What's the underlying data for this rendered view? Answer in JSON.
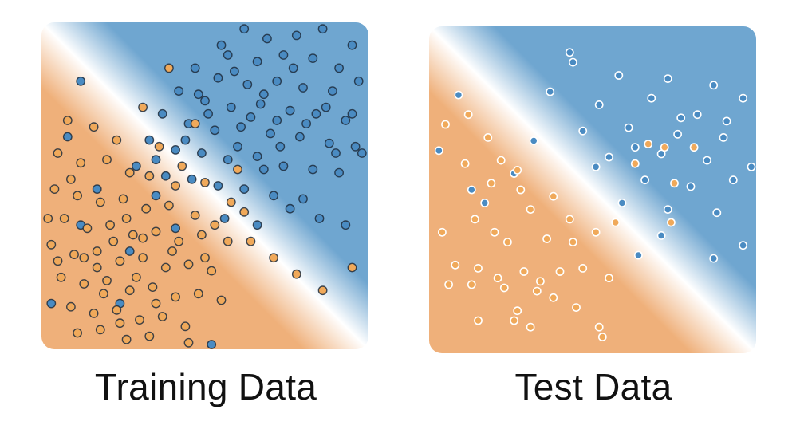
{
  "colors": {
    "class_a": "#4a8bc2",
    "class_b": "#f0a95a",
    "background_a": "#6fa6d0",
    "background_b": "#efb07a",
    "boundary": "#ffffff"
  },
  "chart_data": [
    {
      "type": "scatter",
      "title": "Training Data",
      "xlim": [
        0,
        1
      ],
      "ylim": [
        0,
        1
      ],
      "grid": false,
      "legend": "none",
      "point_style": "dark outline",
      "decision_boundary": {
        "from": [
          0.0,
          1.0
        ],
        "to": [
          1.0,
          0.0
        ]
      },
      "series": [
        {
          "class": "blue",
          "points": [
            [
              0.62,
              0.98
            ],
            [
              0.69,
              0.95
            ],
            [
              0.78,
              0.96
            ],
            [
              0.86,
              0.98
            ],
            [
              0.95,
              0.93
            ],
            [
              0.57,
              0.9
            ],
            [
              0.66,
              0.88
            ],
            [
              0.74,
              0.9
            ],
            [
              0.83,
              0.89
            ],
            [
              0.91,
              0.86
            ],
            [
              0.47,
              0.86
            ],
            [
              0.54,
              0.83
            ],
            [
              0.63,
              0.81
            ],
            [
              0.72,
              0.82
            ],
            [
              0.8,
              0.8
            ],
            [
              0.89,
              0.79
            ],
            [
              0.97,
              0.82
            ],
            [
              0.42,
              0.79
            ],
            [
              0.5,
              0.76
            ],
            [
              0.58,
              0.74
            ],
            [
              0.67,
              0.75
            ],
            [
              0.76,
              0.73
            ],
            [
              0.84,
              0.72
            ],
            [
              0.93,
              0.7
            ],
            [
              0.37,
              0.72
            ],
            [
              0.45,
              0.69
            ],
            [
              0.53,
              0.67
            ],
            [
              0.61,
              0.68
            ],
            [
              0.7,
              0.66
            ],
            [
              0.79,
              0.65
            ],
            [
              0.88,
              0.63
            ],
            [
              0.96,
              0.62
            ],
            [
              0.33,
              0.64
            ],
            [
              0.41,
              0.61
            ],
            [
              0.49,
              0.6
            ],
            [
              0.57,
              0.58
            ],
            [
              0.66,
              0.59
            ],
            [
              0.74,
              0.56
            ],
            [
              0.83,
              0.55
            ],
            [
              0.91,
              0.54
            ],
            [
              0.29,
              0.56
            ],
            [
              0.38,
              0.53
            ],
            [
              0.46,
              0.52
            ],
            [
              0.54,
              0.5
            ],
            [
              0.62,
              0.49
            ],
            [
              0.71,
              0.47
            ],
            [
              0.8,
              0.46
            ],
            [
              0.6,
              0.62
            ],
            [
              0.68,
              0.55
            ],
            [
              0.76,
              0.43
            ],
            [
              0.85,
              0.4
            ],
            [
              0.93,
              0.38
            ],
            [
              0.72,
              0.7
            ],
            [
              0.81,
              0.69
            ],
            [
              0.51,
              0.72
            ],
            [
              0.44,
              0.64
            ],
            [
              0.64,
              0.71
            ],
            [
              0.87,
              0.74
            ],
            [
              0.95,
              0.72
            ],
            [
              0.59,
              0.85
            ],
            [
              0.12,
              0.82
            ],
            [
              0.08,
              0.65
            ],
            [
              0.17,
              0.49
            ],
            [
              0.12,
              0.38
            ],
            [
              0.03,
              0.14
            ],
            [
              0.24,
              0.14
            ],
            [
              0.35,
              0.47
            ],
            [
              0.27,
              0.3
            ],
            [
              0.52,
              0.0
            ],
            [
              0.41,
              0.37
            ],
            [
              0.56,
              0.4
            ],
            [
              0.66,
              0.38
            ],
            [
              0.73,
              0.62
            ],
            [
              0.9,
              0.6
            ],
            [
              0.35,
              0.58
            ],
            [
              0.48,
              0.78
            ],
            [
              0.77,
              0.86
            ],
            [
              0.98,
              0.6
            ],
            [
              0.55,
              0.93
            ],
            [
              0.68,
              0.78
            ]
          ]
        },
        {
          "class": "orange",
          "points": [
            [
              0.05,
              0.6
            ],
            [
              0.12,
              0.57
            ],
            [
              0.2,
              0.58
            ],
            [
              0.27,
              0.54
            ],
            [
              0.04,
              0.49
            ],
            [
              0.11,
              0.47
            ],
            [
              0.18,
              0.45
            ],
            [
              0.25,
              0.46
            ],
            [
              0.32,
              0.43
            ],
            [
              0.39,
              0.44
            ],
            [
              0.07,
              0.4
            ],
            [
              0.14,
              0.37
            ],
            [
              0.21,
              0.38
            ],
            [
              0.28,
              0.35
            ],
            [
              0.35,
              0.36
            ],
            [
              0.42,
              0.33
            ],
            [
              0.49,
              0.35
            ],
            [
              0.03,
              0.32
            ],
            [
              0.1,
              0.29
            ],
            [
              0.17,
              0.3
            ],
            [
              0.24,
              0.27
            ],
            [
              0.31,
              0.28
            ],
            [
              0.38,
              0.25
            ],
            [
              0.45,
              0.26
            ],
            [
              0.52,
              0.24
            ],
            [
              0.06,
              0.22
            ],
            [
              0.13,
              0.2
            ],
            [
              0.2,
              0.21
            ],
            [
              0.27,
              0.18
            ],
            [
              0.34,
              0.19
            ],
            [
              0.41,
              0.16
            ],
            [
              0.48,
              0.17
            ],
            [
              0.55,
              0.15
            ],
            [
              0.09,
              0.13
            ],
            [
              0.16,
              0.11
            ],
            [
              0.23,
              0.12
            ],
            [
              0.3,
              0.09
            ],
            [
              0.37,
              0.1
            ],
            [
              0.44,
              0.07
            ],
            [
              0.11,
              0.05
            ],
            [
              0.18,
              0.06
            ],
            [
              0.26,
              0.03
            ],
            [
              0.33,
              0.04
            ],
            [
              0.45,
              0.02
            ],
            [
              0.08,
              0.7
            ],
            [
              0.16,
              0.68
            ],
            [
              0.23,
              0.64
            ],
            [
              0.36,
              0.62
            ],
            [
              0.43,
              0.56
            ],
            [
              0.5,
              0.51
            ],
            [
              0.58,
              0.45
            ],
            [
              0.64,
              0.33
            ],
            [
              0.71,
              0.28
            ],
            [
              0.78,
              0.23
            ],
            [
              0.86,
              0.18
            ],
            [
              0.95,
              0.25
            ],
            [
              0.39,
              0.86
            ],
            [
              0.62,
              0.42
            ],
            [
              0.31,
              0.74
            ],
            [
              0.47,
              0.69
            ],
            [
              0.19,
              0.17
            ],
            [
              0.29,
              0.22
            ],
            [
              0.4,
              0.3
            ],
            [
              0.5,
              0.28
            ],
            [
              0.57,
              0.33
            ],
            [
              0.05,
              0.27
            ],
            [
              0.22,
              0.33
            ],
            [
              0.35,
              0.14
            ],
            [
              0.13,
              0.28
            ],
            [
              0.02,
              0.4
            ],
            [
              0.26,
              0.4
            ],
            [
              0.33,
              0.53
            ],
            [
              0.41,
              0.5
            ],
            [
              0.47,
              0.41
            ],
            [
              0.53,
              0.38
            ],
            [
              0.6,
              0.55
            ],
            [
              0.09,
              0.52
            ],
            [
              0.17,
              0.25
            ],
            [
              0.24,
              0.08
            ],
            [
              0.31,
              0.34
            ]
          ]
        }
      ]
    },
    {
      "type": "scatter",
      "title": "Test Data",
      "xlim": [
        0,
        1
      ],
      "ylim": [
        0,
        1
      ],
      "grid": false,
      "legend": "none",
      "point_style": "white outline",
      "decision_boundary": {
        "from": [
          0.0,
          1.0
        ],
        "to": [
          1.0,
          0.0
        ]
      },
      "series": [
        {
          "class": "blue",
          "points": [
            [
              0.44,
              0.89
            ],
            [
              0.58,
              0.85
            ],
            [
              0.73,
              0.84
            ],
            [
              0.87,
              0.82
            ],
            [
              0.96,
              0.78
            ],
            [
              0.37,
              0.8
            ],
            [
              0.52,
              0.76
            ],
            [
              0.68,
              0.78
            ],
            [
              0.82,
              0.73
            ],
            [
              0.91,
              0.71
            ],
            [
              0.47,
              0.68
            ],
            [
              0.61,
              0.69
            ],
            [
              0.76,
              0.67
            ],
            [
              0.9,
              0.66
            ],
            [
              0.55,
              0.6
            ],
            [
              0.71,
              0.61
            ],
            [
              0.85,
              0.59
            ],
            [
              0.99,
              0.57
            ],
            [
              0.66,
              0.53
            ],
            [
              0.8,
              0.51
            ],
            [
              0.93,
              0.53
            ],
            [
              0.59,
              0.46
            ],
            [
              0.73,
              0.44
            ],
            [
              0.88,
              0.43
            ],
            [
              0.71,
              0.36
            ],
            [
              0.96,
              0.33
            ],
            [
              0.87,
              0.29
            ],
            [
              0.64,
              0.3
            ],
            [
              0.13,
              0.5
            ],
            [
              0.17,
              0.46
            ],
            [
              0.03,
              0.62
            ],
            [
              0.32,
              0.65
            ],
            [
              0.09,
              0.79
            ],
            [
              0.26,
              0.55
            ],
            [
              0.43,
              0.92
            ],
            [
              0.77,
              0.72
            ],
            [
              0.63,
              0.63
            ],
            [
              0.51,
              0.57
            ]
          ]
        },
        {
          "class": "orange",
          "points": [
            [
              0.05,
              0.7
            ],
            [
              0.12,
              0.73
            ],
            [
              0.18,
              0.66
            ],
            [
              0.11,
              0.58
            ],
            [
              0.22,
              0.59
            ],
            [
              0.28,
              0.5
            ],
            [
              0.14,
              0.41
            ],
            [
              0.2,
              0.37
            ],
            [
              0.04,
              0.37
            ],
            [
              0.24,
              0.34
            ],
            [
              0.31,
              0.44
            ],
            [
              0.38,
              0.48
            ],
            [
              0.43,
              0.41
            ],
            [
              0.36,
              0.35
            ],
            [
              0.44,
              0.34
            ],
            [
              0.51,
              0.37
            ],
            [
              0.57,
              0.4
            ],
            [
              0.08,
              0.27
            ],
            [
              0.15,
              0.26
            ],
            [
              0.21,
              0.23
            ],
            [
              0.29,
              0.25
            ],
            [
              0.34,
              0.22
            ],
            [
              0.4,
              0.25
            ],
            [
              0.47,
              0.26
            ],
            [
              0.55,
              0.23
            ],
            [
              0.06,
              0.21
            ],
            [
              0.13,
              0.21
            ],
            [
              0.23,
              0.2
            ],
            [
              0.27,
              0.13
            ],
            [
              0.33,
              0.19
            ],
            [
              0.38,
              0.17
            ],
            [
              0.45,
              0.14
            ],
            [
              0.52,
              0.08
            ],
            [
              0.26,
              0.1
            ],
            [
              0.31,
              0.08
            ],
            [
              0.15,
              0.1
            ],
            [
              0.63,
              0.58
            ],
            [
              0.74,
              0.4
            ],
            [
              0.67,
              0.64
            ],
            [
              0.72,
              0.63
            ],
            [
              0.75,
              0.52
            ],
            [
              0.81,
              0.63
            ],
            [
              0.53,
              0.05
            ],
            [
              0.19,
              0.52
            ],
            [
              0.27,
              0.56
            ]
          ]
        }
      ]
    }
  ],
  "captions": {
    "train": "Training Data",
    "test": "Test Data"
  }
}
